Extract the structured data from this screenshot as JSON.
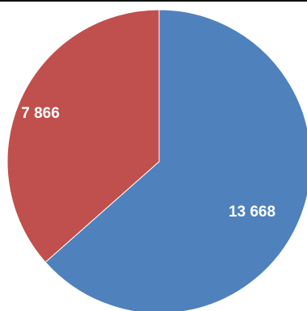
{
  "chart_data": {
    "type": "pie",
    "slices": [
      {
        "label": "13 668",
        "value": 13668,
        "color": "#4f81bd"
      },
      {
        "label": "7 866",
        "value": 7866,
        "color": "#c0504d"
      }
    ],
    "start_angle_deg": 0,
    "direction": "clockwise",
    "legend": "none"
  }
}
